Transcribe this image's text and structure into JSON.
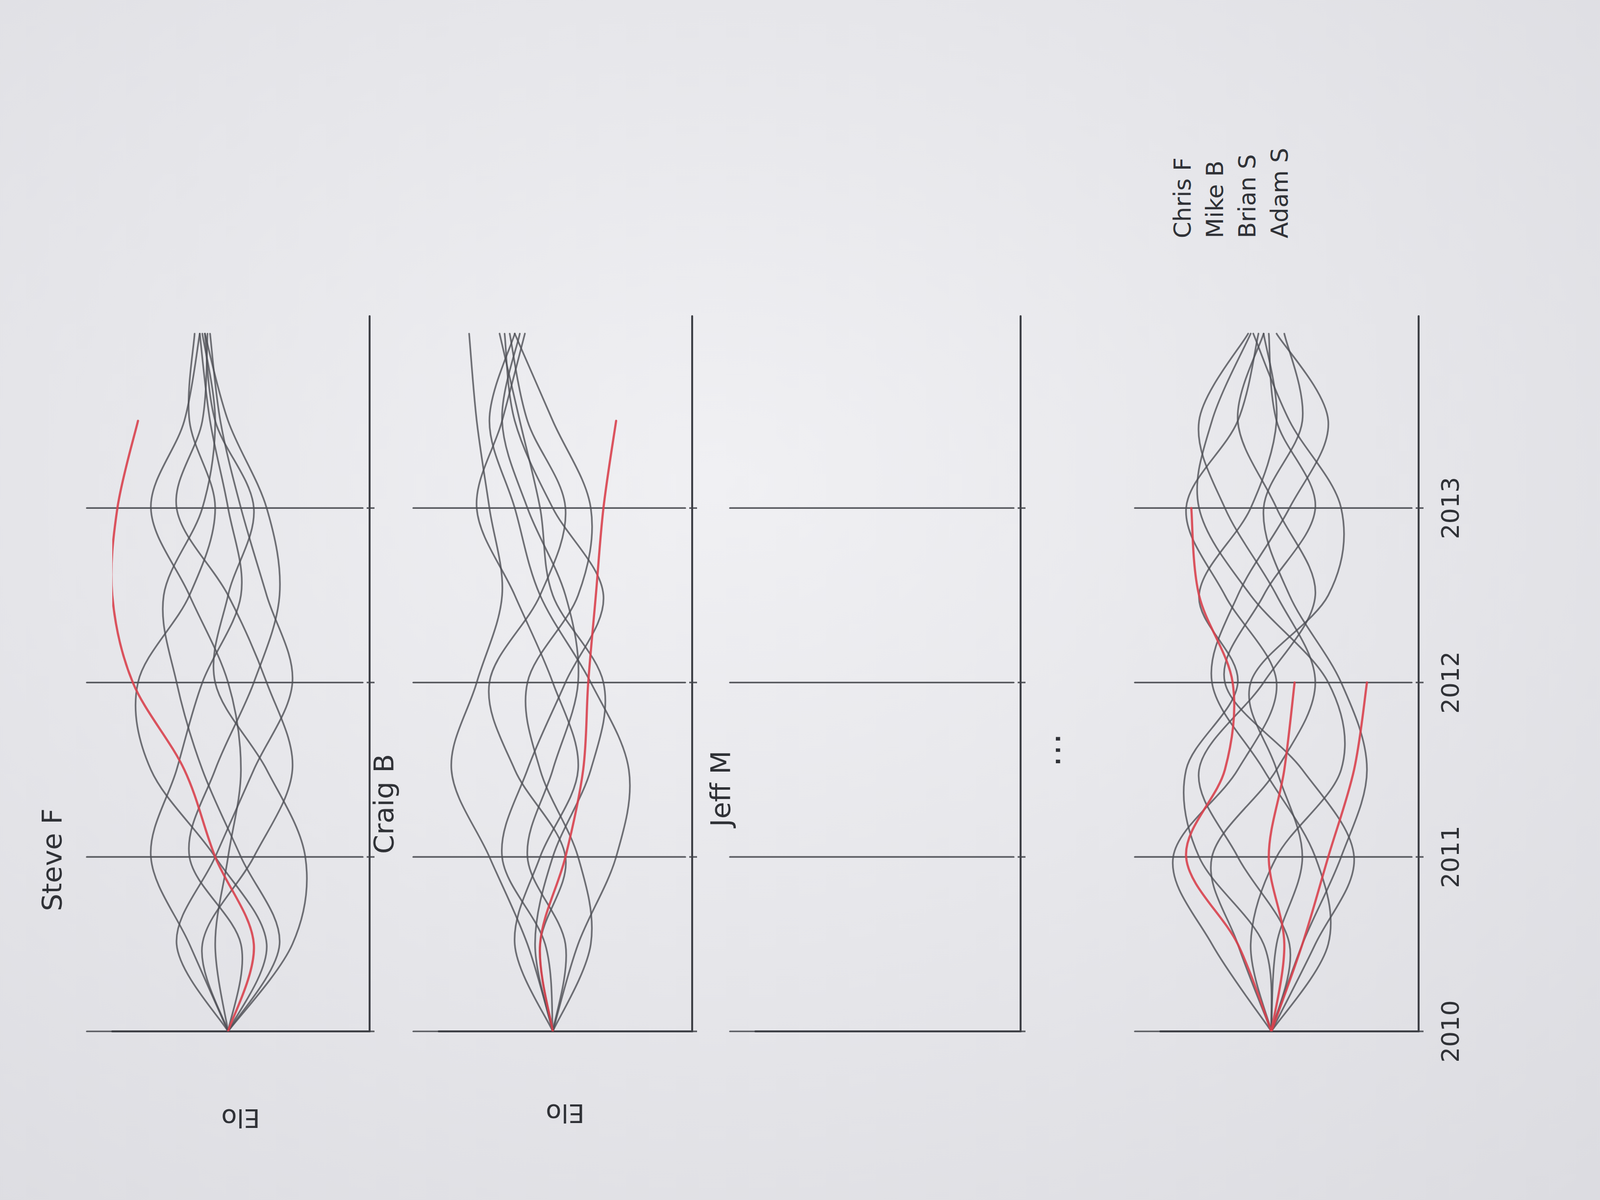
{
  "chart_data": [
    {
      "type": "line",
      "title": "Steve F",
      "y_label": "Elo",
      "x": [
        2010,
        2010.5,
        2011,
        2011.5,
        2012,
        2012.5,
        2013,
        2013.5,
        2014
      ],
      "xlim": [
        2010,
        2014.1
      ],
      "xticks": [
        2010,
        2011,
        2012,
        2013
      ],
      "ylim": [
        0,
        100
      ],
      "grid": true,
      "tick_labels": false,
      "series": [
        {
          "color": "#4d4f55",
          "values": [
            55,
            30,
            25,
            40,
            60,
            55,
            45,
            60,
            64
          ]
        },
        {
          "color": "#4d4f55",
          "values": [
            55,
            70,
            85,
            75,
            65,
            50,
            55,
            62,
            66
          ]
        },
        {
          "color": "#4d4f55",
          "values": [
            55,
            40,
            60,
            85,
            90,
            70,
            60,
            70,
            68
          ]
        },
        {
          "color": "#4d4f55",
          "values": [
            55,
            65,
            45,
            30,
            40,
            55,
            75,
            65,
            63
          ]
        },
        {
          "color": "#4d4f55",
          "values": [
            55,
            50,
            70,
            60,
            45,
            35,
            40,
            55,
            64
          ]
        },
        {
          "color": "#4d4f55",
          "values": [
            55,
            60,
            55,
            50,
            55,
            70,
            85,
            72,
            66
          ]
        },
        {
          "color": "#4d4f55",
          "values": [
            55,
            35,
            50,
            65,
            75,
            80,
            65,
            60,
            65
          ]
        },
        {
          "color": "#4d4f55",
          "values": [
            55,
            75,
            60,
            45,
            30,
            40,
            50,
            58,
            62
          ]
        },
        {
          "color": "#d8414e",
          "values": [
            55,
            45,
            60,
            72,
            92,
            100,
            98,
            90,
            null
          ]
        }
      ]
    },
    {
      "type": "line",
      "title": "Craig B",
      "y_label": "Elo",
      "x": [
        2010,
        2010.5,
        2011,
        2011.5,
        2012,
        2012.5,
        2013,
        2013.5,
        2014
      ],
      "xlim": [
        2010,
        2014.1
      ],
      "xticks": [
        2010,
        2011,
        2012,
        2013
      ],
      "ylim": [
        0,
        100
      ],
      "grid": true,
      "tick_labels": false,
      "series": [
        {
          "color": "#4d4f55",
          "values": [
            55,
            65,
            80,
            95,
            85,
            75,
            80,
            85,
            88
          ]
        },
        {
          "color": "#4d4f55",
          "values": [
            55,
            45,
            30,
            25,
            40,
            60,
            70,
            80,
            70
          ]
        },
        {
          "color": "#4d4f55",
          "values": [
            55,
            60,
            50,
            70,
            80,
            60,
            50,
            65,
            72
          ]
        },
        {
          "color": "#4d4f55",
          "values": [
            55,
            50,
            65,
            55,
            45,
            50,
            65,
            75,
            68
          ]
        },
        {
          "color": "#4d4f55",
          "values": [
            55,
            70,
            60,
            45,
            55,
            70,
            85,
            75,
            66
          ]
        },
        {
          "color": "#4d4f55",
          "values": [
            55,
            40,
            45,
            60,
            65,
            45,
            40,
            55,
            70
          ]
        },
        {
          "color": "#4d4f55",
          "values": [
            55,
            58,
            75,
            65,
            50,
            35,
            55,
            70,
            74
          ]
        },
        {
          "color": "#4d4f55",
          "values": [
            55,
            62,
            55,
            40,
            35,
            55,
            60,
            68,
            76
          ]
        },
        {
          "color": "#d8414e",
          "values": [
            55,
            60,
            50,
            43,
            41,
            38,
            35,
            30,
            null
          ]
        }
      ]
    },
    {
      "type": "line",
      "title": "Jeff M",
      "x": [
        2010,
        2010.5,
        2011,
        2011.5,
        2012,
        2012.5,
        2013,
        2013.5,
        2014
      ],
      "xlim": [
        2010,
        2014.1
      ],
      "xticks": [
        2010,
        2011,
        2012,
        2013
      ],
      "ylim": [
        0,
        100
      ],
      "grid": true,
      "tick_labels": false,
      "series": []
    },
    {
      "type": "line",
      "x": [
        2010,
        2010.5,
        2011,
        2011.5,
        2012,
        2012.5,
        2013,
        2013.5,
        2014
      ],
      "xlim": [
        2010,
        2014.1
      ],
      "xticks": [
        2010,
        2011,
        2012,
        2013
      ],
      "ylim": [
        0,
        100
      ],
      "grid": true,
      "tick_labels": "x",
      "annotations": [
        "Chris F",
        "Mike B",
        "Brian S",
        "Adam S"
      ],
      "series": [
        {
          "color": "#4d4f55",
          "values": [
            57,
            80,
            95,
            70,
            55,
            75,
            90,
            70,
            62
          ]
        },
        {
          "color": "#4d4f55",
          "values": [
            57,
            40,
            25,
            45,
            75,
            60,
            40,
            55,
            58
          ]
        },
        {
          "color": "#4d4f55",
          "values": [
            57,
            65,
            55,
            30,
            35,
            65,
            85,
            80,
            65
          ]
        },
        {
          "color": "#4d4f55",
          "values": [
            57,
            50,
            70,
            85,
            60,
            40,
            55,
            70,
            60
          ]
        },
        {
          "color": "#4d4f55",
          "values": [
            57,
            35,
            40,
            60,
            80,
            70,
            50,
            35,
            55
          ]
        },
        {
          "color": "#4d4f55",
          "values": [
            57,
            70,
            80,
            55,
            40,
            55,
            75,
            85,
            66
          ]
        },
        {
          "color": "#4d4f55",
          "values": [
            57,
            45,
            30,
            20,
            30,
            50,
            60,
            45,
            52
          ]
        },
        {
          "color": "#4d4f55",
          "values": [
            57,
            60,
            85,
            90,
            70,
            85,
            65,
            55,
            60
          ]
        },
        {
          "color": "#4d4f55",
          "values": [
            57,
            55,
            45,
            55,
            65,
            35,
            30,
            50,
            64
          ]
        },
        {
          "color": "#d8414e",
          "values": [
            57,
            70,
            90,
            75,
            72,
            85,
            88,
            null,
            null
          ]
        },
        {
          "color": "#d8414e",
          "values": [
            57,
            52,
            58,
            52,
            48,
            null,
            null,
            null,
            null
          ]
        },
        {
          "color": "#d8414e",
          "values": [
            57,
            45,
            35,
            25,
            20,
            null,
            null,
            null,
            null
          ]
        }
      ]
    }
  ],
  "ellipsis": "⋯"
}
